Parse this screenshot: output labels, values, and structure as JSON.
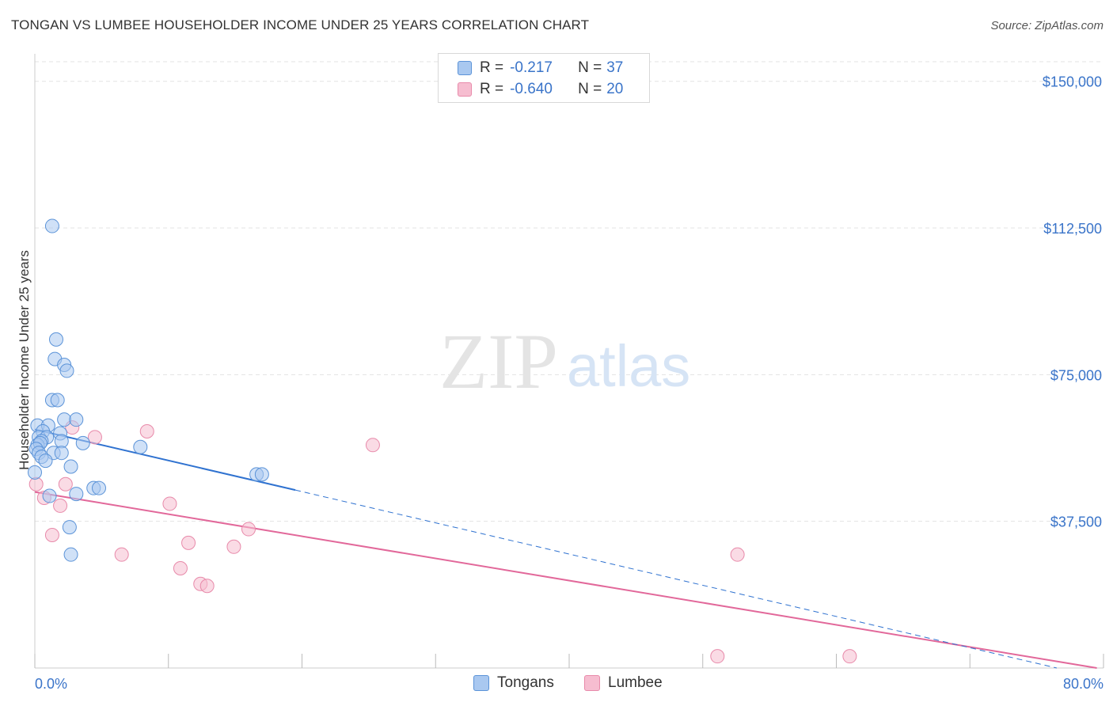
{
  "title": "TONGAN VS LUMBEE HOUSEHOLDER INCOME UNDER 25 YEARS CORRELATION CHART",
  "source": "Source: ZipAtlas.com",
  "watermark": {
    "zip": "ZIP",
    "atlas": "atlas"
  },
  "legend_top": {
    "rows": [
      {
        "r_label": "R =",
        "r_value": "-0.217",
        "n_label": "N =",
        "n_value": "37"
      },
      {
        "r_label": "R =",
        "r_value": "-0.640",
        "n_label": "N =",
        "n_value": "20"
      }
    ]
  },
  "legend_bottom": {
    "tongans": "Tongans",
    "lumbee": "Lumbee"
  },
  "colors": {
    "tongans_fill": "#a9c8f0",
    "tongans_stroke": "#5b93d8",
    "tongans_line": "#2f72d0",
    "lumbee_fill": "#f6bdd0",
    "lumbee_stroke": "#e88aaa",
    "lumbee_line": "#e2689a",
    "axis_label": "#3a74c9",
    "grid": "#e3e3e3"
  },
  "chart_data": {
    "type": "scatter",
    "title": "TONGAN VS LUMBEE HOUSEHOLDER INCOME UNDER 25 YEARS CORRELATION CHART",
    "xlabel": "",
    "ylabel": "Householder Income Under 25 years",
    "xlim": [
      0,
      80
    ],
    "ylim": [
      0,
      155000
    ],
    "x_tick_labels": {
      "min": "0.0%",
      "max": "80.0%"
    },
    "y_ticks": [
      {
        "value": 37500,
        "label": "$37,500"
      },
      {
        "value": 75000,
        "label": "$75,000"
      },
      {
        "value": 112500,
        "label": "$112,500"
      },
      {
        "value": 150000,
        "label": "$150,000"
      }
    ],
    "series": [
      {
        "name": "Tongans",
        "r": -0.217,
        "n": 37,
        "points": [
          {
            "x": 1.3,
            "y": 113000
          },
          {
            "x": 1.6,
            "y": 84000
          },
          {
            "x": 1.5,
            "y": 79000
          },
          {
            "x": 2.2,
            "y": 77500
          },
          {
            "x": 2.4,
            "y": 76000
          },
          {
            "x": 1.3,
            "y": 68500
          },
          {
            "x": 1.7,
            "y": 68500
          },
          {
            "x": 2.2,
            "y": 63500
          },
          {
            "x": 3.1,
            "y": 63500
          },
          {
            "x": 0.2,
            "y": 62000
          },
          {
            "x": 1.0,
            "y": 62000
          },
          {
            "x": 0.6,
            "y": 60500
          },
          {
            "x": 1.9,
            "y": 60000
          },
          {
            "x": 0.3,
            "y": 59000
          },
          {
            "x": 0.9,
            "y": 59000
          },
          {
            "x": 0.5,
            "y": 58000
          },
          {
            "x": 2.0,
            "y": 58000
          },
          {
            "x": 0.2,
            "y": 57000
          },
          {
            "x": 0.4,
            "y": 57500
          },
          {
            "x": 3.6,
            "y": 57500
          },
          {
            "x": 0.1,
            "y": 56000
          },
          {
            "x": 0.3,
            "y": 55000
          },
          {
            "x": 1.4,
            "y": 55000
          },
          {
            "x": 2.0,
            "y": 55000
          },
          {
            "x": 0.5,
            "y": 54000
          },
          {
            "x": 7.9,
            "y": 56500
          },
          {
            "x": 0.0,
            "y": 50000
          },
          {
            "x": 2.7,
            "y": 51500
          },
          {
            "x": 16.6,
            "y": 49500
          },
          {
            "x": 17.0,
            "y": 49500
          },
          {
            "x": 4.4,
            "y": 46000
          },
          {
            "x": 4.8,
            "y": 46000
          },
          {
            "x": 3.1,
            "y": 44500
          },
          {
            "x": 1.1,
            "y": 44000
          },
          {
            "x": 2.6,
            "y": 36000
          },
          {
            "x": 2.7,
            "y": 29000
          },
          {
            "x": 0.8,
            "y": 53000
          }
        ],
        "trend": {
          "x0": 0,
          "y0": 61000,
          "x1": 19.5,
          "y1": 45500,
          "dash_x1": 76.5,
          "dash_y1": 0
        }
      },
      {
        "name": "Lumbee",
        "r": -0.64,
        "n": 20,
        "points": [
          {
            "x": 0.1,
            "y": 47000
          },
          {
            "x": 0.7,
            "y": 43500
          },
          {
            "x": 2.3,
            "y": 47000
          },
          {
            "x": 1.9,
            "y": 41500
          },
          {
            "x": 1.3,
            "y": 34000
          },
          {
            "x": 2.8,
            "y": 61500
          },
          {
            "x": 4.5,
            "y": 59000
          },
          {
            "x": 8.4,
            "y": 60500
          },
          {
            "x": 6.5,
            "y": 29000
          },
          {
            "x": 10.1,
            "y": 42000
          },
          {
            "x": 11.5,
            "y": 32000
          },
          {
            "x": 10.9,
            "y": 25500
          },
          {
            "x": 12.4,
            "y": 21500
          },
          {
            "x": 12.9,
            "y": 21000
          },
          {
            "x": 14.9,
            "y": 31000
          },
          {
            "x": 16.0,
            "y": 35500
          },
          {
            "x": 25.3,
            "y": 57000
          },
          {
            "x": 52.6,
            "y": 29000
          },
          {
            "x": 51.1,
            "y": 3000
          },
          {
            "x": 61.0,
            "y": 3000
          }
        ],
        "trend": {
          "x0": 0,
          "y0": 45000,
          "x1": 79.5,
          "y1": 0
        }
      }
    ]
  }
}
